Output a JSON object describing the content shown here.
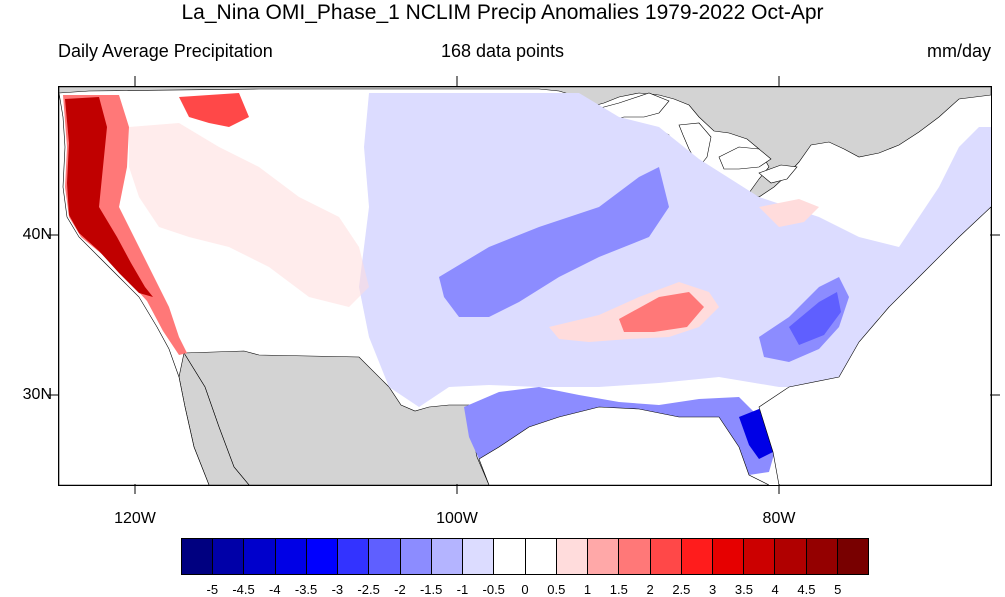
{
  "title": "La_Nina OMI_Phase_1 NCLIM Precip Anomalies 1979-2022 Oct-Apr",
  "subtitle_left": "Daily Average Precipitation",
  "subtitle_center": "168 data points",
  "subtitle_right": "mm/day",
  "x_axis_labels": [
    "120W",
    "100W",
    "80W"
  ],
  "y_axis_labels": [
    "40N",
    "30N"
  ],
  "colorbar": {
    "colors": [
      "#000080",
      "#0000a8",
      "#0000cc",
      "#0000e6",
      "#0000ff",
      "#3333ff",
      "#5f5fff",
      "#8c8cff",
      "#b4b4ff",
      "#dcdcff",
      "#ffffff",
      "#ffffff",
      "#ffdcdc",
      "#ffa8a8",
      "#ff7878",
      "#ff4848",
      "#ff1c1c",
      "#e60000",
      "#cc0000",
      "#b00000",
      "#940000",
      "#780000"
    ],
    "labels": [
      "-5",
      "-4.5",
      "-4",
      "-3.5",
      "-3",
      "-2.5",
      "-2",
      "-1.5",
      "-1",
      "-0.5",
      "0",
      "0.5",
      "1",
      "1.5",
      "2",
      "2.5",
      "3",
      "3.5",
      "4",
      "4.5",
      "5"
    ]
  },
  "colors": {
    "land_masked": "#d3d3d3",
    "strong_positive": "#c00000",
    "positive": "#ff7878",
    "light_positive": "#ffdcdc",
    "light_negative": "#dcdcff",
    "negative": "#8c8cff",
    "strong_negative": "#3333ff"
  }
}
